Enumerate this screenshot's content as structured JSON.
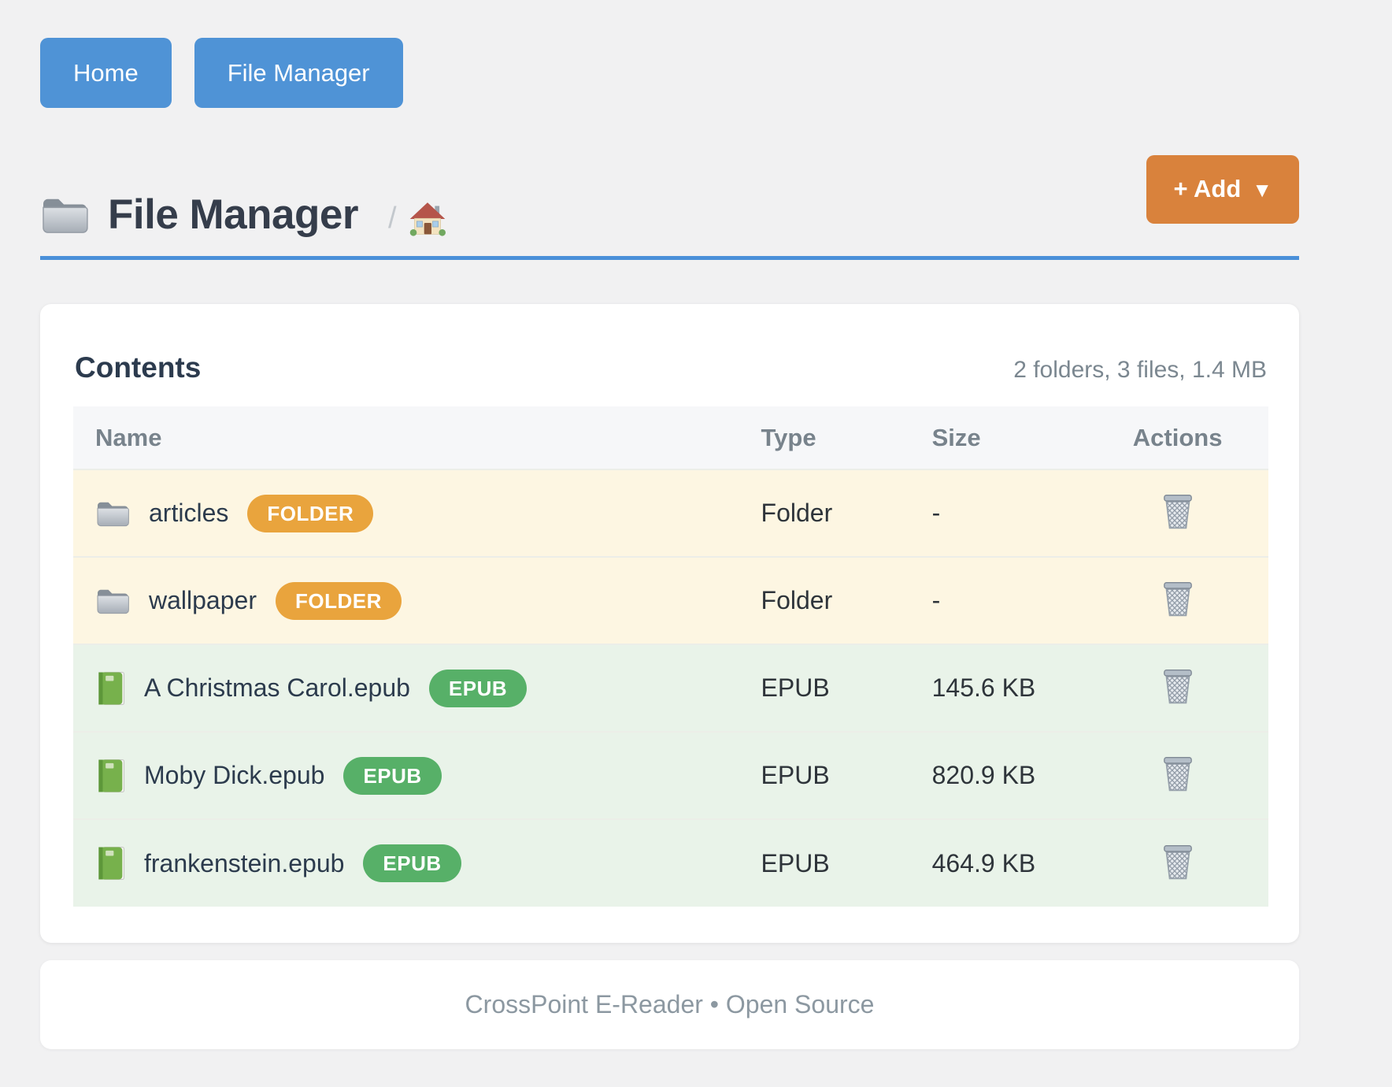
{
  "nav": {
    "buttons": [
      {
        "label": "Home"
      },
      {
        "label": "File Manager"
      }
    ]
  },
  "header": {
    "title": "File Manager",
    "title_icon": "folder-icon",
    "breadcrumb_separator": "/",
    "breadcrumb_home_icon": "house-icon",
    "add_button": {
      "label": "+ Add",
      "caret": "▼"
    }
  },
  "contents": {
    "heading": "Contents",
    "summary": "2 folders, 3 files, 1.4 MB",
    "columns": [
      "Name",
      "Type",
      "Size",
      "Actions"
    ],
    "action_icon": "trash-icon",
    "rows": [
      {
        "kind": "folder",
        "icon": "folder-icon",
        "name": "articles",
        "badge": "FOLDER",
        "type": "Folder",
        "size": "-"
      },
      {
        "kind": "folder",
        "icon": "folder-icon",
        "name": "wallpaper",
        "badge": "FOLDER",
        "type": "Folder",
        "size": "-"
      },
      {
        "kind": "epub",
        "icon": "book-icon",
        "name": "A Christmas Carol.epub",
        "badge": "EPUB",
        "type": "EPUB",
        "size": "145.6 KB"
      },
      {
        "kind": "epub",
        "icon": "book-icon",
        "name": "Moby Dick.epub",
        "badge": "EPUB",
        "type": "EPUB",
        "size": "820.9 KB"
      },
      {
        "kind": "epub",
        "icon": "book-icon",
        "name": "frankenstein.epub",
        "badge": "EPUB",
        "type": "EPUB",
        "size": "464.9 KB"
      }
    ]
  },
  "footer": {
    "text": "CrossPoint E-Reader • Open Source"
  },
  "colors": {
    "page_background": "#f1f1f2",
    "primary_blue": "#4f93d6",
    "divider_blue": "#4a90d9",
    "accent_orange": "#d9823c",
    "folder_badge": "#e9a43d",
    "epub_badge": "#57b068",
    "folder_row_bg": "#fdf6e2",
    "epub_row_bg": "#e9f3e9",
    "table_header_bg": "#f6f7f9",
    "heading_text": "#2c3b4e",
    "muted_text": "#7b8790"
  }
}
